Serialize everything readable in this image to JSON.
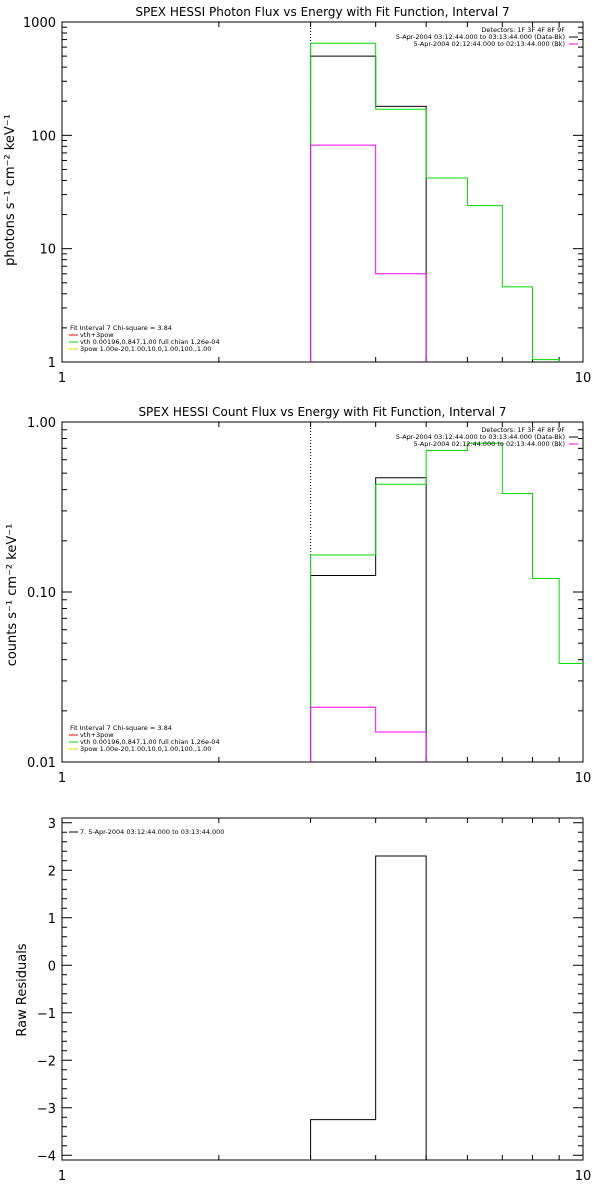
{
  "chart_data": [
    {
      "type": "line",
      "title": "SPEX HESSI Photon Flux vs Energy with Fit Function, Interval 7",
      "xlabel": "",
      "ylabel": "photons s⁻¹ cm⁻² keV⁻¹",
      "x_scale": "log",
      "y_scale": "log",
      "xlim": [
        1,
        10
      ],
      "ylim": [
        1,
        1000
      ],
      "x_ticks": [
        {
          "v": 1,
          "label": "1"
        },
        {
          "v": 10,
          "label": "10"
        }
      ],
      "y_ticks": [
        {
          "v": 1,
          "label": "1"
        },
        {
          "v": 10,
          "label": "10"
        },
        {
          "v": 100,
          "label": "100"
        },
        {
          "v": 1000,
          "label": "1000"
        }
      ],
      "vline_x": 3,
      "header_lines": [
        "Detectors: 1F 3F 4F 8F 9F",
        "5-Apr-2004 03:12:44.000 to 03:13:44.000 (Data-Bk)",
        "5-Apr-2004 02:12:44.000 to 02:13:44.000 (Bk)"
      ],
      "header_colors": [
        "#000000",
        "#000000",
        "#ff00ff"
      ],
      "legend_lines": [
        "Fit Interval 7    Chi-square = 3.84",
        "vth+3pow",
        "vth 0.00196,0.847,1.00   full chian 1.26e-04",
        "3pow 1.00e-20,1.00,10.0,1.00,100.,1.00"
      ],
      "legend_colors": [
        "",
        "#ff0000",
        "#00dd00",
        "#dddd00"
      ],
      "series": [
        {
          "color": "#000000",
          "edges": [
            3,
            4,
            5
          ],
          "values": [
            500,
            180
          ]
        },
        {
          "color": "#00dd00",
          "edges": [
            3,
            4,
            5,
            6,
            7,
            8,
            9
          ],
          "values": [
            650,
            170,
            42,
            24,
            4.6,
            1.05
          ]
        },
        {
          "color": "#ff00ff",
          "edges": [
            3,
            4,
            5
          ],
          "values": [
            82,
            6
          ]
        }
      ]
    },
    {
      "type": "line",
      "title": "SPEX HESSI Count Flux vs Energy with Fit Function, Interval 7",
      "xlabel": "",
      "ylabel": "counts s⁻¹ cm⁻² keV⁻¹",
      "x_scale": "log",
      "y_scale": "log",
      "xlim": [
        1,
        10
      ],
      "ylim": [
        0.01,
        1
      ],
      "x_ticks": [
        {
          "v": 1,
          "label": "1"
        },
        {
          "v": 10,
          "label": "10"
        }
      ],
      "y_ticks": [
        {
          "v": 0.01,
          "label": "0.01"
        },
        {
          "v": 0.1,
          "label": "0.10"
        },
        {
          "v": 1,
          "label": "1.00"
        }
      ],
      "vline_x": 3,
      "header_lines": [
        "Detectors: 1F 3F 4F 8F 9F",
        "5-Apr-2004 03:12:44.000 to 03:13:44.000 (Data-Bk)",
        "5-Apr-2004 02:12:44.000 to 02:13:44.000 (Bk)"
      ],
      "header_colors": [
        "#000000",
        "#000000",
        "#ff00ff"
      ],
      "legend_lines": [
        "Fit Interval 7    Chi-square = 3.84",
        "vth+3pow",
        "vth 0.00196,0.847,1.00   full chian 1.26e-04",
        "3pow 1.00e-20,1.00,10.0,1.00,100.,1.00"
      ],
      "legend_colors": [
        "",
        "#ff0000",
        "#00dd00",
        "#dddd00"
      ],
      "series": [
        {
          "color": "#000000",
          "edges": [
            3,
            4,
            5
          ],
          "values": [
            0.125,
            0.47
          ]
        },
        {
          "color": "#00dd00",
          "edges": [
            3,
            4,
            5,
            6,
            7,
            8,
            9,
            10
          ],
          "values": [
            0.165,
            0.43,
            0.68,
            0.75,
            0.38,
            0.12,
            0.038
          ]
        },
        {
          "color": "#ff00ff",
          "edges": [
            3,
            4,
            5
          ],
          "values": [
            0.021,
            0.015
          ]
        }
      ]
    },
    {
      "type": "line",
      "title": "",
      "xlabel": "",
      "ylabel": "Raw Residuals",
      "x_scale": "log",
      "y_scale": "linear",
      "xlim": [
        1,
        10
      ],
      "ylim": [
        -4.1,
        3.1
      ],
      "x_ticks": [
        {
          "v": 1,
          "label": "1"
        },
        {
          "v": 10,
          "label": "10"
        }
      ],
      "y_ticks": [
        {
          "v": -4,
          "label": "−4"
        },
        {
          "v": -3,
          "label": "−3"
        },
        {
          "v": -2,
          "label": "−2"
        },
        {
          "v": -1,
          "label": "−1"
        },
        {
          "v": 0,
          "label": "0"
        },
        {
          "v": 1,
          "label": "1"
        },
        {
          "v": 2,
          "label": "2"
        },
        {
          "v": 3,
          "label": "3"
        }
      ],
      "legend_lines": [
        "7.  5-Apr-2004 03:12:44.000 to 03:13:44.000"
      ],
      "legend_colors": [
        "#000000"
      ],
      "series": [
        {
          "color": "#000000",
          "edges": [
            3,
            4,
            5
          ],
          "values": [
            -3.25,
            2.3
          ]
        }
      ]
    }
  ]
}
